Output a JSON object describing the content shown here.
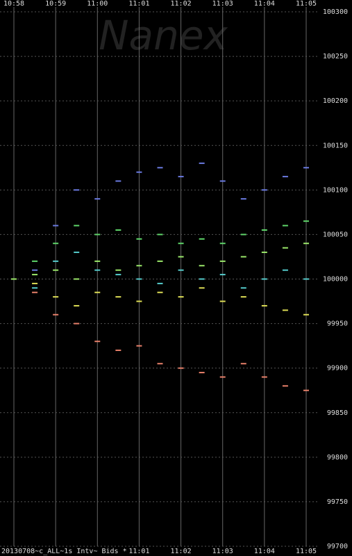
{
  "chart_data": {
    "type": "scatter",
    "watermark": "Nanex",
    "caption": "20130708~c_ALL~1s Intv~ Bids *",
    "x": [
      0,
      0.5,
      1,
      1.5,
      2,
      2.5,
      3,
      3.5,
      4,
      4.5,
      5,
      5.5,
      6,
      6.5,
      7
    ],
    "xlim": [
      0,
      7
    ],
    "xticks": [
      {
        "value": 0,
        "label": "10:58"
      },
      {
        "value": 1,
        "label": "10:59"
      },
      {
        "value": 2,
        "label": "11:00"
      },
      {
        "value": 3,
        "label": "11:01"
      },
      {
        "value": 4,
        "label": "11:02"
      },
      {
        "value": 5,
        "label": "11:03"
      },
      {
        "value": 6,
        "label": "11:04"
      },
      {
        "value": 7,
        "label": "11:05"
      }
    ],
    "ylim": [
      99700,
      100300
    ],
    "yticks": [
      99700,
      99750,
      99800,
      99850,
      99900,
      99950,
      100000,
      100050,
      100100,
      100150,
      100200,
      100250,
      100300
    ],
    "grid": true,
    "series": [
      {
        "color": "#6a7ae0",
        "values": [
          100000,
          100010,
          100060,
          100100,
          100090,
          100110,
          100120,
          100125,
          100115,
          100130,
          100110,
          100090,
          100100,
          100115,
          100125
        ]
      },
      {
        "color": "#e8806a",
        "values": [
          100000,
          99985,
          99960,
          99950,
          99930,
          99920,
          99925,
          99905,
          99900,
          99895,
          99890,
          99905,
          99890,
          99880,
          99875
        ]
      },
      {
        "color": "#5fd66a",
        "values": [
          100000,
          100020,
          100040,
          100060,
          100050,
          100055,
          100045,
          100050,
          100040,
          100045,
          100040,
          100050,
          100055,
          100060,
          100065
        ]
      },
      {
        "color": "#55cccc",
        "values": [
          100000,
          99990,
          100020,
          100030,
          100010,
          100005,
          100000,
          99995,
          100010,
          100000,
          100005,
          99990,
          100000,
          100010,
          100000
        ]
      },
      {
        "color": "#dddd55",
        "values": [
          100000,
          99995,
          99980,
          99970,
          99985,
          99980,
          99975,
          99985,
          99980,
          99990,
          99975,
          99980,
          99970,
          99965,
          99960
        ]
      },
      {
        "color": "#9be86a",
        "values": [
          100000,
          100005,
          100010,
          100000,
          100020,
          100010,
          100015,
          100020,
          100025,
          100015,
          100020,
          100025,
          100030,
          100035,
          100040
        ]
      }
    ]
  }
}
